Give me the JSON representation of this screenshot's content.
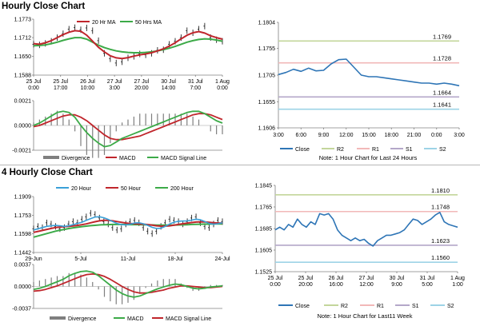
{
  "sections": {
    "hourly_title": "Hourly Close Chart",
    "four_hourly_title": "4 Hourly Close Chart"
  },
  "notes": {
    "hourly_note": "Note: 1 Hour Chart for Last 24 Hours",
    "four_hourly_note": "Note: 1 Hour Chart for Last11 Week"
  },
  "colors": {
    "price": "#222222",
    "ma_short": "#3aa0d8",
    "ma_mid": "#c0262c",
    "ma_long": "#3caa48",
    "close_line": "#2e75b6",
    "r2": "#c3d69b",
    "r1": "#f2b8b8",
    "s1": "#b4a7c9",
    "s2": "#9dd3e6",
    "macd": "#3caa48",
    "signal": "#c0262c",
    "divergence": "#7f7f7f"
  },
  "chart_data": [
    {
      "id": "hourly_price",
      "type": "line",
      "yticks": [
        "1.1773",
        "1.1712",
        "1.1650",
        "1.1588"
      ],
      "ylim": [
        1.1588,
        1.1773
      ],
      "xticks": [
        "25 Jul\n0:00",
        "25 Jul\n17:00",
        "26 Jul\n10:00",
        "27 Jul\n3:00",
        "27 Jul\n20:00",
        "30 Jul\n14:00",
        "31 Jul\n7:00",
        "1 Aug\n0:00"
      ],
      "legend": [
        "20 Hr MA",
        "50 Hrs MA"
      ],
      "price": [
        1.169,
        1.1688,
        1.1693,
        1.17,
        1.1712,
        1.1725,
        1.174,
        1.1745,
        1.1738,
        1.1744,
        1.1735,
        1.1702,
        1.166,
        1.1642,
        1.1628,
        1.1632,
        1.1645,
        1.165,
        1.1658,
        1.1655,
        1.166,
        1.167,
        1.1672,
        1.169,
        1.17,
        1.1712,
        1.1735,
        1.1728,
        1.174,
        1.175,
        1.1712,
        1.1705,
        1.17
      ],
      "ma20": [
        1.1692,
        1.169,
        1.1695,
        1.1702,
        1.1712,
        1.1722,
        1.173,
        1.1735,
        1.1733,
        1.172,
        1.17,
        1.168,
        1.1665,
        1.1652,
        1.1645,
        1.1643,
        1.1646,
        1.1651,
        1.1655,
        1.1658,
        1.1662,
        1.1668,
        1.1675,
        1.1684,
        1.1695,
        1.1708,
        1.172,
        1.1728,
        1.1732,
        1.1727,
        1.1718,
        1.1712,
        1.1707
      ],
      "ma50": [
        1.1685,
        1.1686,
        1.1688,
        1.1692,
        1.1697,
        1.1703,
        1.1708,
        1.1712,
        1.1712,
        1.1707,
        1.1697,
        1.1687,
        1.1679,
        1.1673,
        1.1668,
        1.1665,
        1.1663,
        1.1662,
        1.1662,
        1.1663,
        1.1665,
        1.1668,
        1.1672,
        1.1677,
        1.1683,
        1.169,
        1.1697,
        1.1702,
        1.1706,
        1.1708,
        1.1707,
        1.1704,
        1.17
      ]
    },
    {
      "id": "hourly_macd",
      "type": "line",
      "yticks": [
        "0.0021",
        "0.0000",
        "-0.0021"
      ],
      "ylim": [
        -0.0021,
        0.0021
      ],
      "legend": [
        "Divergence",
        "MACD",
        "MACD Signal Line"
      ],
      "macd": [
        0.0,
        0.0002,
        0.0005,
        0.0008,
        0.0011,
        0.0012,
        0.0011,
        0.0007,
        0.0,
        -0.0006,
        -0.0011,
        -0.0015,
        -0.0018,
        -0.0017,
        -0.0014,
        -0.0011,
        -0.0009,
        -0.0007,
        -0.0005,
        -0.0003,
        -0.0001,
        0.0001,
        0.0003,
        0.0005,
        0.0007,
        0.0009,
        0.0011,
        0.0012,
        0.0012,
        0.001,
        0.0007,
        0.0004,
        0.0002
      ],
      "signal": [
        -0.0001,
        0.0,
        0.0002,
        0.0004,
        0.0006,
        0.0008,
        0.0009,
        0.0009,
        0.0007,
        0.0004,
        0.0,
        -0.0004,
        -0.0008,
        -0.0011,
        -0.0012,
        -0.0012,
        -0.0011,
        -0.001,
        -0.0009,
        -0.0007,
        -0.0005,
        -0.0003,
        -0.0001,
        0.0001,
        0.0003,
        0.0005,
        0.0007,
        0.0009,
        0.001,
        0.001,
        0.0009,
        0.0007,
        0.0005
      ]
    },
    {
      "id": "hourly_pivot",
      "type": "line",
      "yticks": [
        "1.1804",
        "1.1755",
        "1.1705",
        "1.1655",
        "1.1606"
      ],
      "ylim": [
        1.1606,
        1.1804
      ],
      "xticks": [
        "3:00",
        "6:00",
        "9:00",
        "12:00",
        "15:00",
        "18:00",
        "21:00",
        "0:00",
        "3:00"
      ],
      "legend": [
        "Close",
        "R2",
        "R1",
        "S1",
        "S2"
      ],
      "levels": {
        "R2": 1.1769,
        "R1": 1.1728,
        "S1": 1.1664,
        "S2": 1.1641
      },
      "level_labels": {
        "R2": "1.1769",
        "R1": "1.1728",
        "S1": "1.1664",
        "S2": "1.1641"
      },
      "close": [
        1.1706,
        1.171,
        1.1716,
        1.1712,
        1.1718,
        1.1713,
        1.1714,
        1.1726,
        1.1734,
        1.1735,
        1.172,
        1.1705,
        1.1702,
        1.1702,
        1.17,
        1.1698,
        1.1696,
        1.1694,
        1.1692,
        1.169,
        1.169,
        1.1688,
        1.169,
        1.1688,
        1.1685
      ]
    },
    {
      "id": "four_hourly_price",
      "type": "line",
      "yticks": [
        "1.1909",
        "1.1753",
        "1.1598",
        "1.1442"
      ],
      "ylim": [
        1.1442,
        1.1909
      ],
      "xticks": [
        "29-Jun",
        "5-Jul",
        "11-Jul",
        "18-Jul",
        "24-Jul"
      ],
      "legend": [
        "20 Hour",
        "50 Hour",
        "200 Hour"
      ],
      "price": [
        1.164,
        1.166,
        1.165,
        1.169,
        1.168,
        1.166,
        1.164,
        1.165,
        1.168,
        1.17,
        1.169,
        1.172,
        1.174,
        1.177,
        1.176,
        1.173,
        1.17,
        1.168,
        1.165,
        1.163,
        1.164,
        1.168,
        1.17,
        1.171,
        1.169,
        1.165,
        1.162,
        1.16,
        1.162,
        1.166,
        1.169,
        1.172,
        1.171,
        1.17,
        1.168,
        1.17,
        1.173,
        1.174,
        1.169,
        1.166,
        1.165,
        1.168,
        1.171,
        1.17
      ],
      "ma20": [
        1.163,
        1.164,
        1.165,
        1.166,
        1.1665,
        1.1668,
        1.1665,
        1.166,
        1.1665,
        1.1675,
        1.1685,
        1.1695,
        1.171,
        1.1725,
        1.1738,
        1.174,
        1.1732,
        1.1718,
        1.17,
        1.1685,
        1.1675,
        1.1672,
        1.1678,
        1.1688,
        1.169,
        1.1682,
        1.1668,
        1.1652,
        1.1642,
        1.1645,
        1.166,
        1.168,
        1.1695,
        1.1703,
        1.1705,
        1.1706,
        1.1712,
        1.172,
        1.1715,
        1.17,
        1.1684,
        1.1678,
        1.1682,
        1.169
      ],
      "ma50": [
        1.161,
        1.1618,
        1.1626,
        1.1635,
        1.1643,
        1.165,
        1.1655,
        1.1658,
        1.166,
        1.1664,
        1.1668,
        1.1674,
        1.1681,
        1.169,
        1.1699,
        1.1706,
        1.171,
        1.171,
        1.1706,
        1.17,
        1.1694,
        1.1688,
        1.1684,
        1.1682,
        1.1681,
        1.1679,
        1.1675,
        1.167,
        1.1665,
        1.1662,
        1.1662,
        1.1665,
        1.167,
        1.1676,
        1.1682,
        1.1687,
        1.1692,
        1.1696,
        1.1698,
        1.1697,
        1.1694,
        1.169,
        1.1688,
        1.1688
      ],
      "ma200": [
        1.157,
        1.158,
        1.159,
        1.16,
        1.161,
        1.162,
        1.1628,
        1.1635,
        1.1642,
        1.1648,
        1.1653,
        1.1658,
        1.1662,
        1.1666,
        1.1669,
        1.1672,
        1.1674,
        1.1675,
        1.1676,
        1.1676,
        1.1676,
        1.1675,
        1.1675,
        1.1675,
        1.1675,
        1.1674,
        1.1673,
        1.1672,
        1.1671,
        1.167,
        1.167,
        1.167,
        1.1671,
        1.1672,
        1.1673,
        1.1674,
        1.1676,
        1.1677,
        1.1678,
        1.1679,
        1.1679,
        1.168,
        1.168,
        1.1681
      ]
    },
    {
      "id": "four_hourly_macd",
      "type": "line",
      "yticks": [
        "0.0037",
        "0.0000",
        "-0.0037"
      ],
      "ylim": [
        -0.0037,
        0.0037
      ],
      "legend": [
        "Divergence",
        "MACD",
        "MACD Signal Line"
      ],
      "macd": [
        -0.0005,
        -0.0003,
        0.0,
        0.0004,
        0.0008,
        0.0012,
        0.0018,
        0.0022,
        0.0025,
        0.0026,
        0.0024,
        0.0018,
        0.001,
        0.0002,
        -0.0006,
        -0.0012,
        -0.0016,
        -0.0018,
        -0.0016,
        -0.0012,
        -0.0008,
        -0.0004,
        -0.0001,
        0.0002,
        0.0004,
        0.0003,
        0.0,
        -0.0003,
        -0.0004,
        -0.0003,
        -0.0001,
        0.0,
        0.0001
      ],
      "signal": [
        -0.0008,
        -0.0007,
        -0.0005,
        -0.0002,
        0.0001,
        0.0005,
        0.0009,
        0.0013,
        0.0017,
        0.002,
        0.0021,
        0.002,
        0.0017,
        0.0012,
        0.0006,
        0.0,
        -0.0005,
        -0.0009,
        -0.0011,
        -0.0011,
        -0.001,
        -0.0008,
        -0.0006,
        -0.0003,
        -0.0001,
        0.0001,
        0.0001,
        0.0,
        -0.0001,
        -0.0002,
        -0.0002,
        -0.0001,
        0.0
      ]
    },
    {
      "id": "four_hourly_pivot",
      "type": "line",
      "yticks": [
        "1.1845",
        "1.1765",
        "1.1685",
        "1.1605",
        "1.1525"
      ],
      "ylim": [
        1.1525,
        1.1845
      ],
      "xticks": [
        "25 Jul\n0:00",
        "25 Jul\n20:00",
        "26 Jul\n16:00",
        "27 Jul\n12:00",
        "30 Jul\n9:00",
        "31 Jul\n5:00",
        "1 Aug\n1:00"
      ],
      "legend": [
        "Close",
        "R2",
        "R1",
        "S1",
        "S2"
      ],
      "levels": {
        "R2": 1.181,
        "R1": 1.1748,
        "S1": 1.1623,
        "S2": 1.156
      },
      "level_labels": {
        "R2": "1.1810",
        "R1": "1.1748",
        "S1": "1.1623",
        "S2": "1.1560"
      },
      "close": [
        1.168,
        1.169,
        1.168,
        1.17,
        1.169,
        1.172,
        1.17,
        1.169,
        1.171,
        1.17,
        1.174,
        1.1735,
        1.174,
        1.172,
        1.168,
        1.166,
        1.165,
        1.164,
        1.165,
        1.164,
        1.1645,
        1.163,
        1.162,
        1.164,
        1.165,
        1.166,
        1.166,
        1.1665,
        1.167,
        1.168,
        1.17,
        1.172,
        1.1715,
        1.17,
        1.171,
        1.172,
        1.1735,
        1.1745,
        1.171,
        1.17,
        1.1695,
        1.169
      ]
    }
  ]
}
